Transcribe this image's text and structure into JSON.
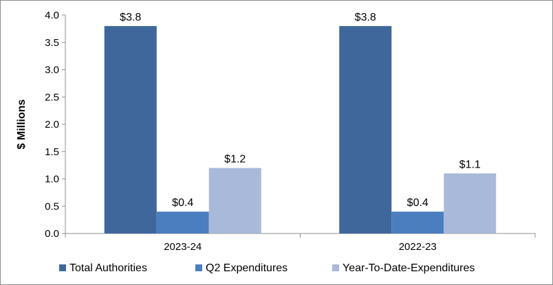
{
  "chart_data": {
    "type": "bar",
    "title": "",
    "xlabel": "",
    "ylabel": "$ Millions",
    "ylim": [
      0,
      4.0
    ],
    "yticks": [
      0.0,
      0.5,
      1.0,
      1.5,
      2.0,
      2.5,
      3.0,
      3.5,
      4.0
    ],
    "ytick_labels": [
      "0.0",
      "0.5",
      "1.0",
      "1.5",
      "2.0",
      "2.5",
      "3.0",
      "3.5",
      "4.0"
    ],
    "grid": false,
    "legend": "bottom",
    "categories": [
      "2023-24",
      "2022-23"
    ],
    "series": [
      {
        "name": "Total Authorities",
        "color": "#3f679c",
        "values": [
          3.8,
          3.8
        ],
        "labels": [
          "$3.8",
          "$3.8"
        ]
      },
      {
        "name": "Q2 Expenditures",
        "color": "#4a7ebf",
        "values": [
          0.4,
          0.4
        ],
        "labels": [
          "$0.4",
          "$0.4"
        ]
      },
      {
        "name": "Year-To-Date-Expenditures",
        "color": "#a8b9d9",
        "values": [
          1.2,
          1.1
        ],
        "labels": [
          "$1.2",
          "$1.1"
        ]
      }
    ]
  }
}
